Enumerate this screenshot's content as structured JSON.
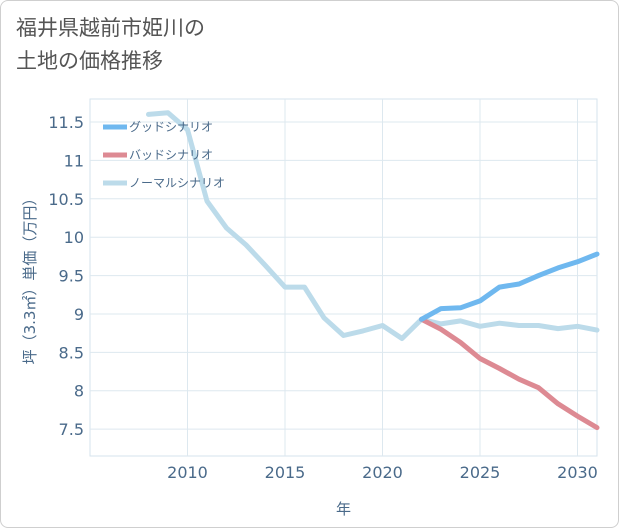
{
  "title_lines": [
    "福井県越前市姫川の",
    "土地の価格推移"
  ],
  "chart_data": {
    "type": "line",
    "xlabel": "年",
    "ylabel": "坪（3.3㎡）単価（万円）",
    "xlim": [
      2005,
      2031
    ],
    "ylim": [
      7.15,
      11.8
    ],
    "x_ticks": [
      2010,
      2015,
      2020,
      2025,
      2030
    ],
    "y_ticks": [
      7.5,
      8,
      8.5,
      9,
      9.5,
      10,
      10.5,
      11,
      11.5
    ],
    "y_tick_labels": [
      "7.5",
      "8",
      "8.5",
      "9",
      "9.5",
      "10",
      "10.5",
      "11",
      "11.5"
    ],
    "grid": true,
    "legend_position": "top-left",
    "series": [
      {
        "name": "グッドシナリオ",
        "color": "#6fb8ef",
        "x": [
          2022,
          2023,
          2024,
          2025,
          2026,
          2027,
          2028,
          2029,
          2030,
          2031
        ],
        "values": [
          8.93,
          9.07,
          9.08,
          9.17,
          9.35,
          9.39,
          9.5,
          9.6,
          9.68,
          9.78
        ]
      },
      {
        "name": "バッドシナリオ",
        "color": "#dd8a93",
        "x": [
          2022,
          2023,
          2024,
          2025,
          2026,
          2027,
          2028,
          2029,
          2030,
          2031
        ],
        "values": [
          8.93,
          8.8,
          8.63,
          8.42,
          8.29,
          8.15,
          8.04,
          7.83,
          7.67,
          7.52
        ]
      },
      {
        "name": "ノーマルシナリオ",
        "color": "#bcdbea",
        "x": [
          2008,
          2009,
          2010,
          2011,
          2012,
          2013,
          2014,
          2015,
          2016,
          2017,
          2018,
          2019,
          2020,
          2021,
          2022,
          2023,
          2024,
          2025,
          2026,
          2027,
          2028,
          2029,
          2030,
          2031
        ],
        "values": [
          11.6,
          11.62,
          11.4,
          10.47,
          10.12,
          9.9,
          9.63,
          9.35,
          9.35,
          8.95,
          8.72,
          8.78,
          8.85,
          8.68,
          8.93,
          8.87,
          8.91,
          8.84,
          8.88,
          8.85,
          8.85,
          8.81,
          8.84,
          8.79
        ]
      }
    ]
  }
}
